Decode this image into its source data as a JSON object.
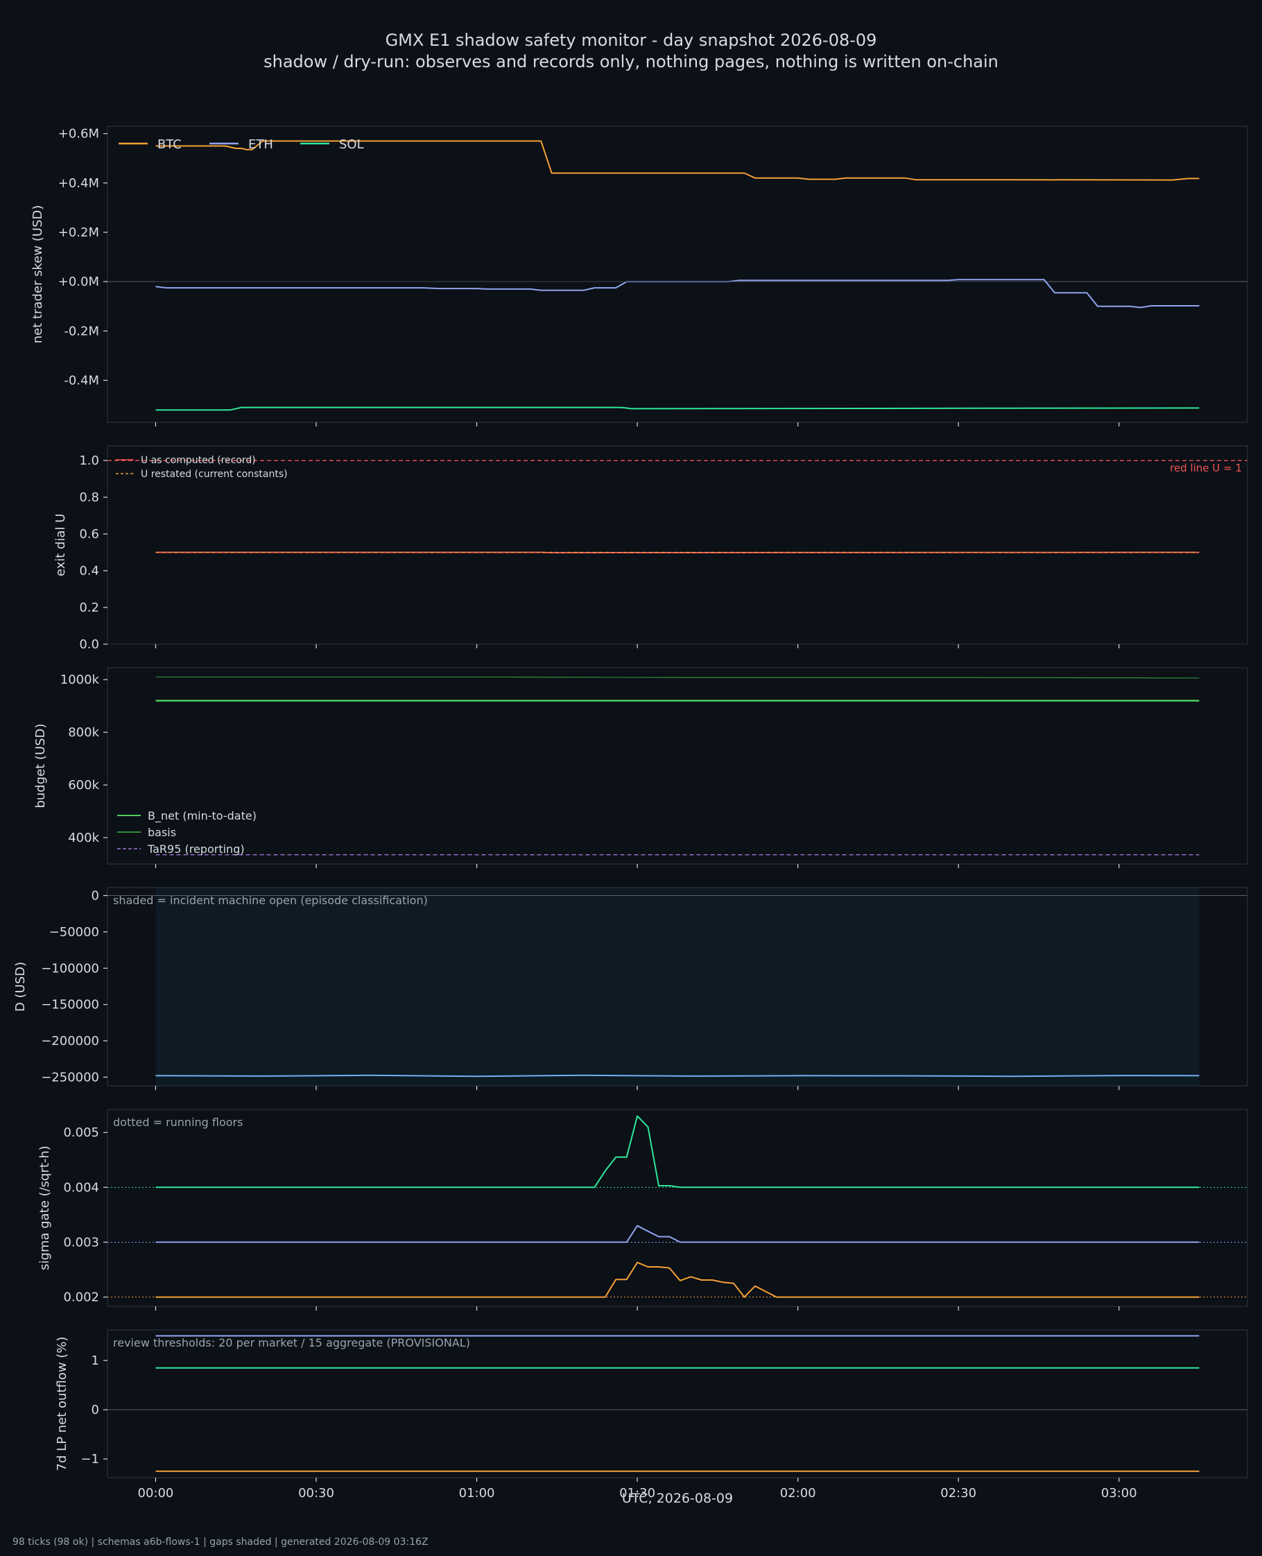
{
  "title": "GMX E1 shadow safety monitor - day snapshot 2026-08-09",
  "subtitle": "shadow / dry-run: observes and records only, nothing pages, nothing is written on-chain",
  "footer": "98 ticks (98 ok) | schemas a6b-flows-1 | gaps shaded | generated 2026-08-09 03:16Z",
  "xlabel": "UTC, 2026-08-09",
  "colors": {
    "background": "#0c1017",
    "axes_frame": "#2a313c",
    "text": "#d8dce2",
    "muted_text": "#9aa3ad",
    "btc": "#f5a033",
    "eth": "#8fa5f0",
    "sol": "#2ee89a",
    "u_record": "#f25555",
    "u_restated": "#e8a23c",
    "b_net": "#4fd25a",
    "basis": "#2f8f3a",
    "tar95": "#a077d6",
    "d": "#6fb3f2",
    "shade": "#0f1b24"
  },
  "chart_data": [
    {
      "id": "skew",
      "type": "line",
      "ylabel": "net trader skew (USD)",
      "ylim": [
        -0.57,
        0.63
      ],
      "yticks": [
        -0.4,
        -0.2,
        0.0,
        0.2,
        0.4,
        0.6
      ],
      "ytick_labels": [
        "-0.4M",
        "-0.2M",
        "+0.0M",
        "+0.2M",
        "+0.4M",
        "+0.6M"
      ],
      "zero_line": 0,
      "legend": "top-left-horizontal",
      "series": [
        {
          "name": "BTC",
          "color_key": "btc",
          "width": 2,
          "points": [
            [
              0,
              0.55
            ],
            [
              3,
              0.55
            ],
            [
              5,
              0.55
            ],
            [
              8,
              0.55
            ],
            [
              13,
              0.55
            ],
            [
              15,
              0.54
            ],
            [
              16,
              0.54
            ],
            [
              17,
              0.535
            ],
            [
              18,
              0.535
            ],
            [
              20,
              0.57
            ],
            [
              35,
              0.57
            ],
            [
              70,
              0.57
            ],
            [
              72,
              0.57
            ],
            [
              74,
              0.44
            ],
            [
              90,
              0.44
            ],
            [
              110,
              0.44
            ],
            [
              112,
              0.42
            ],
            [
              120,
              0.42
            ],
            [
              122,
              0.415
            ],
            [
              127,
              0.415
            ],
            [
              129,
              0.42
            ],
            [
              140,
              0.42
            ],
            [
              142,
              0.413
            ],
            [
              160,
              0.413
            ],
            [
              190,
              0.412
            ],
            [
              193,
              0.418
            ],
            [
              195,
              0.418
            ]
          ]
        },
        {
          "name": "ETH",
          "color_key": "eth",
          "width": 2,
          "points": [
            [
              0,
              -0.02
            ],
            [
              2,
              -0.025
            ],
            [
              50,
              -0.025
            ],
            [
              53,
              -0.028
            ],
            [
              60,
              -0.028
            ],
            [
              62,
              -0.03
            ],
            [
              70,
              -0.03
            ],
            [
              72,
              -0.035
            ],
            [
              80,
              -0.035
            ],
            [
              82,
              -0.025
            ],
            [
              86,
              -0.025
            ],
            [
              88,
              0.0
            ],
            [
              107,
              0.0
            ],
            [
              109,
              0.005
            ],
            [
              130,
              0.005
            ],
            [
              148,
              0.005
            ],
            [
              150,
              0.008
            ],
            [
              166,
              0.008
            ],
            [
              168,
              -0.045
            ],
            [
              174,
              -0.045
            ],
            [
              176,
              -0.1
            ],
            [
              182,
              -0.1
            ],
            [
              184,
              -0.105
            ],
            [
              186,
              -0.098
            ],
            [
              195,
              -0.098
            ]
          ]
        },
        {
          "name": "SOL",
          "color_key": "sol",
          "width": 2,
          "points": [
            [
              0,
              -0.52
            ],
            [
              14,
              -0.52
            ],
            [
              16,
              -0.51
            ],
            [
              87,
              -0.51
            ],
            [
              89,
              -0.515
            ],
            [
              195,
              -0.512
            ]
          ]
        },
        {
          "name": "",
          "color_key": "axes_frame",
          "width": 1,
          "points": [
            [
              0,
              0.0
            ],
            [
              166,
              0.0
            ]
          ]
        }
      ]
    },
    {
      "id": "exit",
      "type": "line",
      "ylabel": "exit dial U",
      "ylim": [
        0.0,
        1.08
      ],
      "yticks": [
        0.0,
        0.2,
        0.4,
        0.6,
        0.8,
        1.0
      ],
      "ytick_labels": [
        "0.0",
        "0.2",
        "0.4",
        "0.6",
        "0.8",
        "1.0"
      ],
      "annotation": "red line U = 1",
      "legend": "top-left",
      "series": [
        {
          "name": "U as computed (record)",
          "color_key": "u_record",
          "width": 2,
          "points": [
            [
              0,
              0.5
            ],
            [
              72,
              0.5
            ],
            [
              74,
              0.498
            ],
            [
              195,
              0.5
            ]
          ]
        },
        {
          "name": "U restated (current constants)",
          "color_key": "u_restated",
          "width": 1.4,
          "dash": "5,4",
          "points": [
            [
              0,
              0.5
            ],
            [
              195,
              0.5
            ]
          ]
        }
      ],
      "hlines": [
        {
          "y": 1.0,
          "color_key": "u_record",
          "dash": "6,4",
          "width": 1.4
        }
      ]
    },
    {
      "id": "budget",
      "type": "line",
      "ylabel": "budget (USD)",
      "ylim": [
        300000,
        1045000
      ],
      "yticks": [
        400000,
        600000,
        800000,
        1000000
      ],
      "ytick_labels": [
        "400k",
        "600k",
        "800k",
        "1000k"
      ],
      "legend": "bottom-left",
      "series": [
        {
          "name": "B_net (min-to-date)",
          "color_key": "b_net",
          "width": 2.6,
          "points": [
            [
              0,
              920000
            ],
            [
              195,
              920000
            ]
          ]
        },
        {
          "name": "basis",
          "color_key": "basis",
          "width": 1.2,
          "points": [
            [
              0,
              1010000
            ],
            [
              60,
              1010000
            ],
            [
              100,
              1008000
            ],
            [
              150,
              1008000
            ],
            [
              195,
              1006000
            ]
          ]
        },
        {
          "name": "TaR95 (reporting)",
          "color_key": "tar95",
          "width": 1.4,
          "dash": "6,4",
          "points": [
            [
              0,
              335000
            ],
            [
              195,
              335000
            ]
          ]
        }
      ]
    },
    {
      "id": "d",
      "type": "line",
      "ylabel": "D (USD)",
      "ylim": [
        -262000,
        11000
      ],
      "yticks": [
        -250000,
        -200000,
        -150000,
        -100000,
        -50000,
        0
      ],
      "ytick_labels": [
        "−250000",
        "−200000",
        "−150000",
        "−100000",
        "−50000",
        "0"
      ],
      "zero_line": 0,
      "annotation": "shaded = incident machine open (episode classification)",
      "shaded_x": [
        0,
        195
      ],
      "series": [
        {
          "name": "",
          "color_key": "d",
          "width": 2,
          "points": [
            [
              0,
              -248000
            ],
            [
              20,
              -248500
            ],
            [
              40,
              -247500
            ],
            [
              60,
              -248800
            ],
            [
              80,
              -247500
            ],
            [
              100,
              -248500
            ],
            [
              120,
              -248000
            ],
            [
              140,
              -248200
            ],
            [
              160,
              -248800
            ],
            [
              180,
              -247800
            ],
            [
              195,
              -248000
            ]
          ]
        }
      ]
    },
    {
      "id": "sigma",
      "type": "line",
      "ylabel": "sigma gate (/sqrt-h)",
      "ylim": [
        0.00183,
        0.00542
      ],
      "yticks": [
        0.002,
        0.003,
        0.004,
        0.005
      ],
      "ytick_labels": [
        "0.002",
        "0.003",
        "0.004",
        "0.005"
      ],
      "annotation": "dotted = running floors",
      "hlines": [
        {
          "y": 0.004,
          "color_key": "sol",
          "dash": "2,3",
          "width": 1
        },
        {
          "y": 0.003,
          "color_key": "eth",
          "dash": "2,3",
          "width": 1
        },
        {
          "y": 0.002,
          "color_key": "btc",
          "dash": "2,3",
          "width": 1
        }
      ],
      "series": [
        {
          "name": "SOL",
          "color_key": "sol",
          "width": 2,
          "points": [
            [
              0,
              0.004
            ],
            [
              82,
              0.004
            ],
            [
              84,
              0.0043
            ],
            [
              86,
              0.00455
            ],
            [
              88,
              0.00455
            ],
            [
              90,
              0.0053
            ],
            [
              92,
              0.0051
            ],
            [
              94,
              0.00403
            ],
            [
              96,
              0.00403
            ],
            [
              98,
              0.004
            ],
            [
              195,
              0.004
            ]
          ]
        },
        {
          "name": "ETH",
          "color_key": "eth",
          "width": 2,
          "points": [
            [
              0,
              0.003
            ],
            [
              88,
              0.003
            ],
            [
              90,
              0.0033
            ],
            [
              92,
              0.0032
            ],
            [
              94,
              0.0031
            ],
            [
              96,
              0.0031
            ],
            [
              98,
              0.003
            ],
            [
              195,
              0.003
            ]
          ]
        },
        {
          "name": "BTC",
          "color_key": "btc",
          "width": 2,
          "points": [
            [
              0,
              0.002
            ],
            [
              84,
              0.002
            ],
            [
              86,
              0.00232
            ],
            [
              88,
              0.00232
            ],
            [
              90,
              0.00263
            ],
            [
              92,
              0.00255
            ],
            [
              94,
              0.00255
            ],
            [
              96,
              0.00253
            ],
            [
              98,
              0.0023
            ],
            [
              100,
              0.00237
            ],
            [
              102,
              0.00231
            ],
            [
              104,
              0.00231
            ],
            [
              106,
              0.00227
            ],
            [
              108,
              0.00225
            ],
            [
              110,
              0.002
            ],
            [
              112,
              0.0022
            ],
            [
              114,
              0.0021
            ],
            [
              116,
              0.002
            ],
            [
              195,
              0.002
            ]
          ]
        }
      ]
    },
    {
      "id": "lp",
      "type": "line",
      "ylabel": "7d LP net outflow (%)",
      "ylim": [
        -1.38,
        1.62
      ],
      "yticks": [
        -1,
        0,
        1
      ],
      "ytick_labels": [
        "−1",
        "0",
        "1"
      ],
      "zero_line": 0,
      "annotation": "review thresholds: 20 per market / 15 aggregate (PROVISIONAL)",
      "series": [
        {
          "name": "ETH",
          "color_key": "eth",
          "width": 2,
          "points": [
            [
              0,
              1.5
            ],
            [
              195,
              1.5
            ]
          ]
        },
        {
          "name": "SOL",
          "color_key": "sol",
          "width": 2,
          "points": [
            [
              0,
              0.85
            ],
            [
              195,
              0.85
            ]
          ]
        },
        {
          "name": "BTC",
          "color_key": "btc",
          "width": 2,
          "points": [
            [
              0,
              -1.25
            ],
            [
              195,
              -1.25
            ]
          ]
        }
      ]
    }
  ],
  "x_axis": {
    "unit": "minutes since 00:00 UTC",
    "xlim": [
      -9,
      204
    ],
    "ticks": [
      0,
      30,
      60,
      90,
      120,
      150,
      180
    ],
    "tick_labels": [
      "00:00",
      "00:30",
      "01:00",
      "01:30",
      "02:00",
      "02:30",
      "03:00"
    ]
  }
}
